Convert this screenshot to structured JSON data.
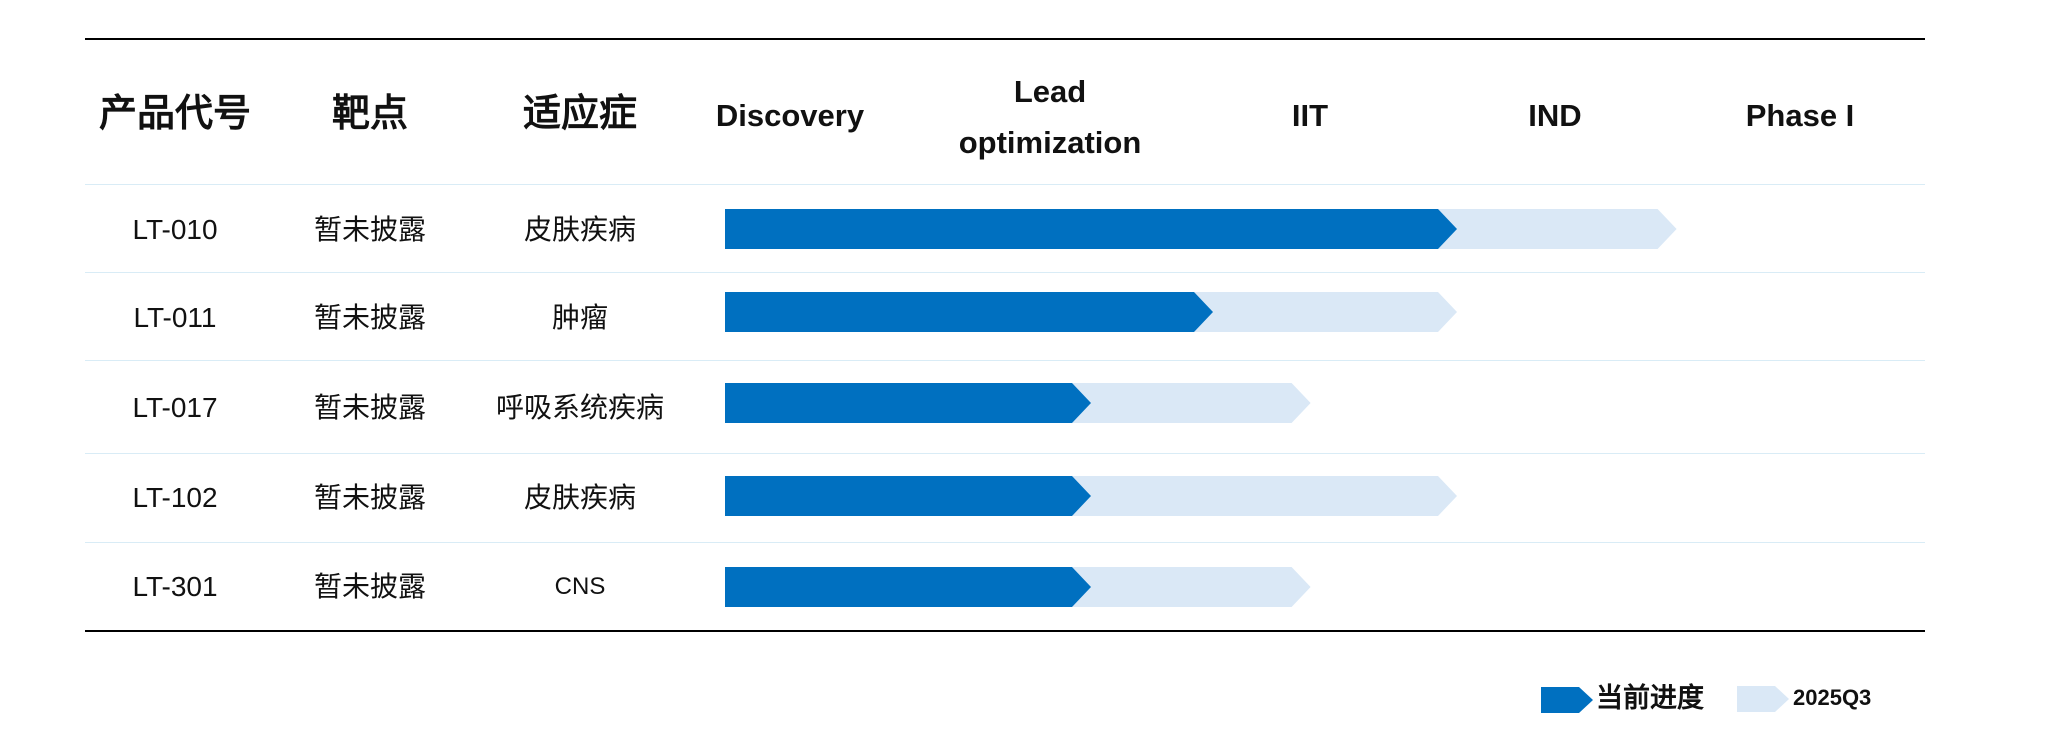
{
  "table": {
    "headers": {
      "product": "产品代号",
      "target": "靶点",
      "indication": "适应症",
      "stages": [
        "Discovery",
        "Lead\noptimization",
        "IIT",
        "IND",
        "Phase I"
      ]
    },
    "rows": [
      {
        "product": "LT-010",
        "target": "暂未披露",
        "indication": "皮肤疾病"
      },
      {
        "product": "LT-011",
        "target": "暂未披露",
        "indication": "肿瘤"
      },
      {
        "product": "LT-017",
        "target": "暂未披露",
        "indication": "呼吸系统疾病"
      },
      {
        "product": "LT-102",
        "target": "暂未披露",
        "indication": "皮肤疾病"
      },
      {
        "product": "LT-301",
        "target": "暂未披露",
        "indication": "CNS"
      }
    ]
  },
  "legend": {
    "current": "当前进度",
    "target": "2025Q3"
  },
  "colors": {
    "current": "#0070C0",
    "target": "#DAE8F6"
  },
  "chart_data": {
    "type": "bar",
    "orientation": "horizontal",
    "stages": [
      "Discovery",
      "Lead optimization",
      "IIT",
      "IND",
      "Phase I"
    ],
    "categories": [
      "LT-010",
      "LT-011",
      "LT-017",
      "LT-102",
      "LT-301"
    ],
    "series": [
      {
        "name": "当前进度",
        "values": [
          3.0,
          2.0,
          1.5,
          1.5,
          1.5
        ]
      },
      {
        "name": "2025Q3",
        "values": [
          3.9,
          3.0,
          2.4,
          3.0,
          2.4
        ]
      }
    ],
    "xlim": [
      0,
      5
    ],
    "legend_position": "bottom-right"
  }
}
